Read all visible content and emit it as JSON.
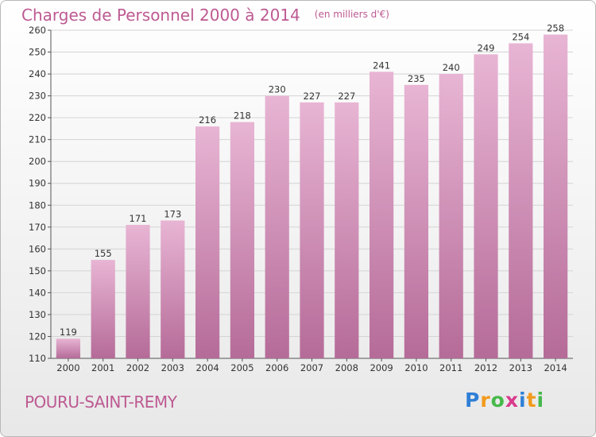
{
  "header": {
    "title": "Charges de Personnel 2000 à 2014",
    "unit": "(en milliers d'€)"
  },
  "footer": {
    "commune": "POURU-SAINT-REMY",
    "brand": [
      "P",
      "r",
      "o",
      "x",
      "i",
      "t",
      "i"
    ],
    "brand_colors": [
      "#2f7fd6",
      "#f29a1c",
      "#46b94a",
      "#d93a8c",
      "#2f7fd6",
      "#f29a1c",
      "#46b94a"
    ]
  },
  "colors": {
    "bar_light": "#e8b5d4",
    "bar_dark": "#b56b98",
    "grid": "#d4d4d4",
    "title": "#bd5a92"
  },
  "chart_data": {
    "type": "bar",
    "title": "Charges de Personnel 2000 à 2014",
    "subtitle": "(en milliers d'€)",
    "xlabel": "",
    "ylabel": "",
    "categories": [
      "2000",
      "2001",
      "2002",
      "2003",
      "2004",
      "2005",
      "2006",
      "2007",
      "2008",
      "2009",
      "2010",
      "2011",
      "2012",
      "2013",
      "2014"
    ],
    "values": [
      119,
      155,
      171,
      173,
      216,
      218,
      230,
      227,
      227,
      241,
      235,
      240,
      249,
      254,
      258
    ],
    "ylim": [
      110,
      260
    ],
    "yticks": [
      110,
      120,
      130,
      140,
      150,
      160,
      170,
      180,
      190,
      200,
      210,
      220,
      230,
      240,
      250,
      260
    ],
    "grid": true,
    "legend": "none"
  }
}
